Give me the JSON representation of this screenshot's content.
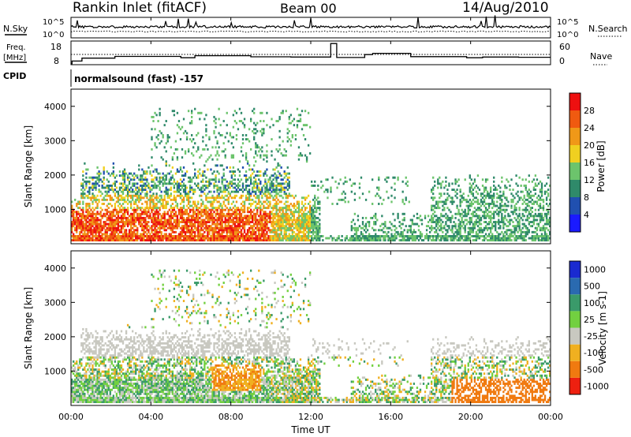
{
  "header": {
    "title": "Rankin Inlet (fitACF)",
    "beam": "Beam 00",
    "date": "14/Aug/2010"
  },
  "panels": {
    "nsky_label": "N.Sky",
    "nsearch_label": "N.Search",
    "freq_label_1": "Freq.",
    "freq_label_2": "[MHz]",
    "nave_label": "Nave",
    "cpid_label": "CPID",
    "cpid_value": "normalsound (fast) -157",
    "ticks": {
      "nsky_top": "10^5",
      "nsky_bottom": "10^0",
      "nsearch_top": "10^5",
      "nsearch_bottom": "10^0",
      "freq_top": "18",
      "freq_bottom": "8",
      "nave_top": "60",
      "nave_bottom": "0"
    }
  },
  "chart_data": [
    {
      "type": "heatmap",
      "name": "Power",
      "ylabel": "Slant Range [km]",
      "y_ticks": [
        "1000",
        "2000",
        "3000",
        "4000"
      ],
      "colorbar_label": "Power [dB]",
      "colorbar_ticks": [
        "4",
        "8",
        "12",
        "16",
        "20",
        "24",
        "28"
      ],
      "colors": [
        "#1a1aff",
        "#2050b0",
        "#2f8a6a",
        "#6cc46c",
        "#f0d020",
        "#f09818",
        "#f05a10",
        "#ee1010"
      ]
    },
    {
      "type": "heatmap",
      "name": "Velocity",
      "ylabel": "Slant Range [km]",
      "y_ticks": [
        "1000",
        "2000",
        "3000",
        "4000"
      ],
      "colorbar_label": "Velocity [m s-1]",
      "colorbar_ticks": [
        "1000",
        "500",
        "100",
        "25",
        "-25",
        "-100",
        "-500",
        "-1000"
      ],
      "colors": [
        "#1a2ad0",
        "#2a6ab0",
        "#3a9a6a",
        "#72d040",
        "#c8c8c0",
        "#f0b020",
        "#f07a10",
        "#ee2010"
      ],
      "xlabel": "Time UT",
      "x_ticks": [
        "00:00",
        "04:00",
        "08:00",
        "12:00",
        "16:00",
        "20:00",
        "00:00"
      ]
    }
  ]
}
